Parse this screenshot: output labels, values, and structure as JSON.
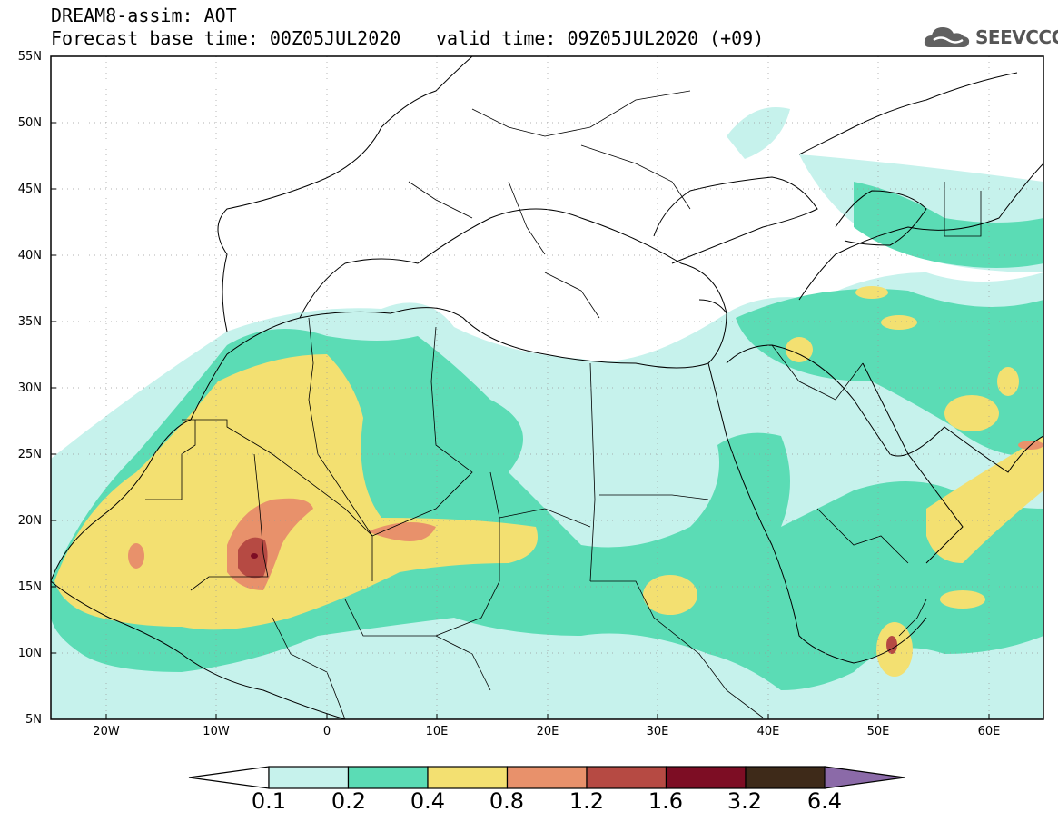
{
  "header": {
    "title": "DREAM8-assim: AOT",
    "base_time": "Forecast base time: 00Z05JUL2020",
    "valid_time": "valid time: 09Z05JUL2020 (+09)",
    "logo_text": "SEEVCCC"
  },
  "map": {
    "lat_labels": [
      "55N",
      "50N",
      "45N",
      "40N",
      "35N",
      "30N",
      "25N",
      "20N",
      "15N",
      "10N",
      "5N"
    ],
    "lon_labels": [
      "20W",
      "10W",
      "0",
      "10E",
      "20E",
      "30E",
      "40E",
      "50E",
      "60E"
    ],
    "lat_range": [
      5,
      55
    ],
    "lon_range": [
      -25,
      65
    ]
  },
  "legend": {
    "thresholds": [
      "0.1",
      "0.2",
      "0.4",
      "0.8",
      "1.2",
      "1.6",
      "3.2",
      "6.4"
    ],
    "colors": [
      "#c6f2ec",
      "#5bdcb5",
      "#f3e071",
      "#e8916b",
      "#b64a43",
      "#7d0d24",
      "#3e2a19",
      "#8b6aa8"
    ]
  }
}
